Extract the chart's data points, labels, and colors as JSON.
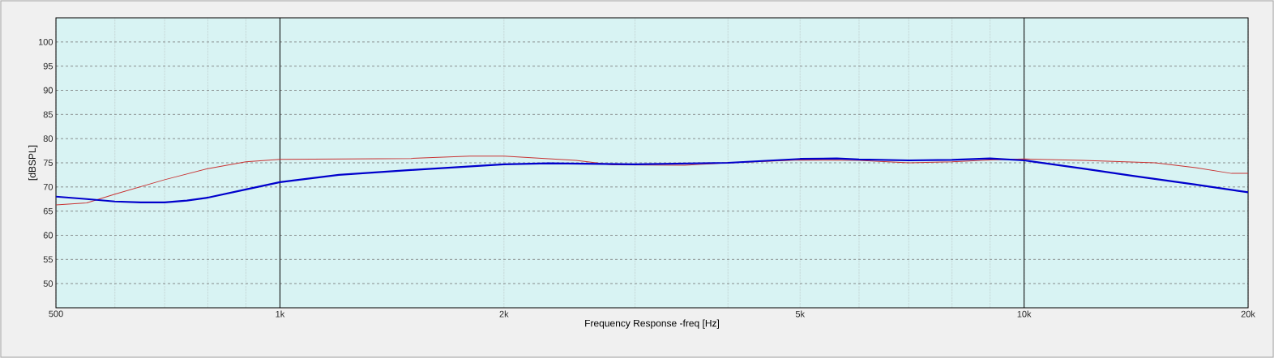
{
  "chart_data": {
    "type": "line",
    "xlabel": "Frequency Response -freq [Hz]",
    "ylabel": "[dBSPL]",
    "log": "x",
    "grid": true,
    "marker": "none",
    "line_style": "solid",
    "xlim": [
      500,
      20000
    ],
    "ylim": [
      45,
      105
    ],
    "xticks": [
      500,
      {
        "value": 600,
        "label": null
      },
      {
        "value": 700,
        "label": null
      },
      {
        "value": 800,
        "label": null
      },
      {
        "value": 900,
        "label": null
      },
      {
        "value": 1000,
        "label": "1k"
      },
      {
        "value": 2000,
        "label": "2k"
      },
      {
        "value": 3000,
        "label": null
      },
      {
        "value": 4000,
        "label": null
      },
      {
        "value": 5000,
        "label": "5k"
      },
      {
        "value": 6000,
        "label": null
      },
      {
        "value": 7000,
        "label": null
      },
      {
        "value": 8000,
        "label": null
      },
      {
        "value": 9000,
        "label": null
      },
      {
        "value": 10000,
        "label": "10k"
      },
      {
        "value": 20000,
        "label": "20k"
      }
    ],
    "yticks": [
      50,
      55,
      60,
      65,
      70,
      75,
      80,
      85,
      90,
      95,
      100
    ],
    "series": [
      {
        "color": "#c83232",
        "x": [
          500,
          550,
          600,
          700,
          800,
          900,
          1000,
          1500,
          1800,
          2000,
          2500,
          2800,
          3500,
          4000,
          5000,
          6000,
          7000,
          8000,
          9000,
          10000,
          12000,
          15000,
          17000,
          19000,
          20000
        ],
        "values": [
          66.3,
          66.7,
          68.5,
          71.5,
          73.8,
          75.2,
          75.7,
          75.9,
          76.4,
          76.4,
          75.5,
          74.6,
          74.5,
          75,
          75.6,
          75.5,
          75,
          75.2,
          75.6,
          75.8,
          75.5,
          75,
          74,
          72.8,
          72.8
        ]
      },
      {
        "color": "#0000cc",
        "x": [
          500,
          550,
          600,
          650,
          700,
          750,
          800,
          900,
          1000,
          1200,
          1500,
          2000,
          2300,
          3000,
          4000,
          5000,
          5600,
          6000,
          7000,
          8000,
          9000,
          10000,
          12000,
          14000,
          17000,
          20000
        ],
        "values": [
          68,
          67.5,
          67,
          66.8,
          66.8,
          67.2,
          67.8,
          69.5,
          71,
          72.5,
          73.5,
          74.7,
          74.9,
          74.7,
          75,
          75.8,
          75.9,
          75.7,
          75.5,
          75.6,
          75.9,
          75.5,
          73.8,
          72.3,
          70.5,
          68.9
        ]
      }
    ]
  }
}
